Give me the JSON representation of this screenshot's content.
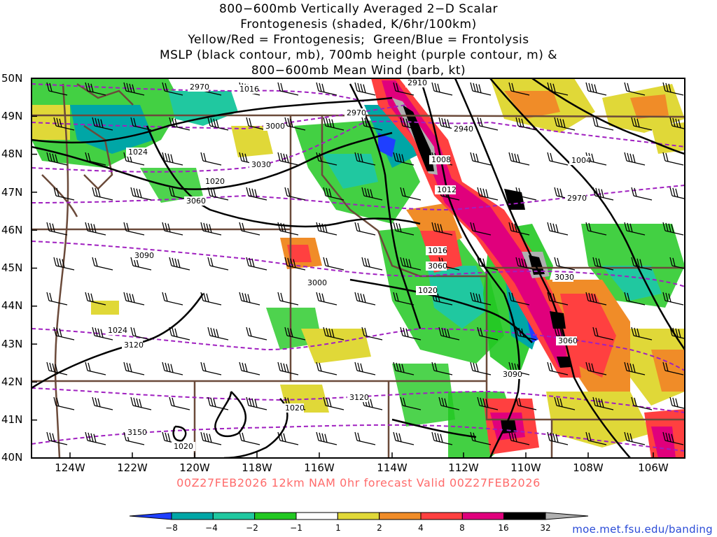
{
  "title_lines": [
    "800−600mb Vertically Averaged 2−D Scalar",
    "Frontogenesis (shaded, K/6hr/100km)",
    "Yellow/Red = Frontogenesis;  Green/Blue = Frontolysis",
    "MSLP (black contour, mb), 700mb height (purple contour, m) &",
    "800−600mb Mean Wind (barb, kt)"
  ],
  "footer": "00Z27FEB2026 12km NAM 0hr forecast Valid 00Z27FEB2026",
  "credit": "moe.met.fsu.edu/banding",
  "lat_labels": [
    "50N",
    "49N",
    "48N",
    "47N",
    "46N",
    "45N",
    "44N",
    "43N",
    "42N",
    "41N",
    "40N"
  ],
  "lon_labels": [
    "124W",
    "122W",
    "120W",
    "118W",
    "116W",
    "114W",
    "112W",
    "110W",
    "108W",
    "106W"
  ],
  "colorbar": {
    "labels": [
      "−8",
      "−4",
      "−2",
      "−1",
      "1",
      "2",
      "4",
      "8",
      "16",
      "32"
    ],
    "colors": [
      "#1f3fff",
      "#00a6a6",
      "#20c8a0",
      "#22c822",
      "#ffffff",
      "#e0d838",
      "#f08c28",
      "#ff4040",
      "#e0007c",
      "#000000",
      "#b0b0b0"
    ]
  },
  "colors": {
    "mslp": "#000000",
    "height": "#a020c0",
    "boundary": "#6b4a3a",
    "frontolysis": "#22c822",
    "frontogenesis": "#f08c28"
  },
  "mslp_labels": [
    "1024",
    "1020",
    "1016",
    "1012",
    "1008",
    "1004",
    "1024",
    "1020",
    "1020",
    "1016",
    "1020"
  ],
  "height_labels": [
    "2970",
    "3000",
    "3030",
    "3060",
    "3090",
    "3120",
    "3150",
    "2910",
    "2940",
    "2970",
    "3030",
    "3060",
    "3090",
    "3120",
    "3060",
    "3000",
    "2970"
  ]
}
